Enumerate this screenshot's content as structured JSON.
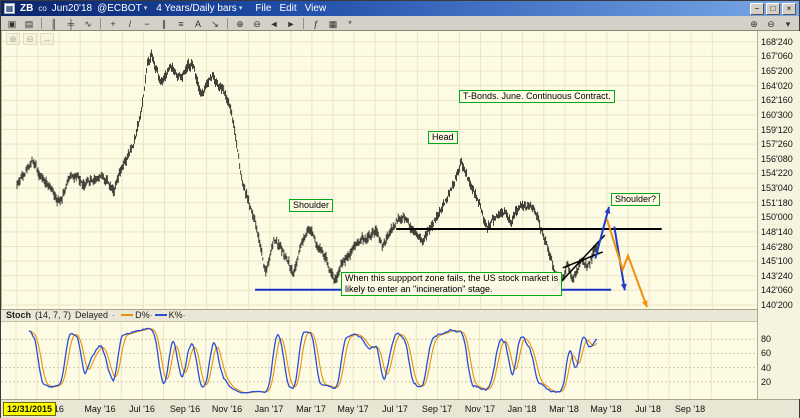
{
  "window": {
    "app_icon_glyph": "▦",
    "symbol": "ZB",
    "symbol_suffix": "co",
    "contract": "Jun20'18",
    "exchange": "@ECBOT",
    "dropdown_glyph": "▾",
    "period": "4 Years/Daily bars",
    "menu_items": [
      "File",
      "Edit",
      "View"
    ],
    "buttons": [
      {
        "name": "minimize-button",
        "glyph": "−"
      },
      {
        "name": "maximize-button",
        "glyph": "□"
      },
      {
        "name": "close-button",
        "glyph": "×"
      }
    ]
  },
  "toolbar": {
    "icons": [
      {
        "name": "open-chart-icon",
        "glyph": "▣"
      },
      {
        "name": "print-icon",
        "glyph": "▤"
      },
      {
        "sep": true
      },
      {
        "name": "bar-chart-icon",
        "glyph": "║"
      },
      {
        "name": "candlestick-icon",
        "glyph": "╪"
      },
      {
        "name": "line-chart-icon",
        "glyph": "∿"
      },
      {
        "sep": true
      },
      {
        "name": "crosshair-icon",
        "glyph": "+"
      },
      {
        "name": "trendline-icon",
        "glyph": "/"
      },
      {
        "name": "horizontal-line-icon",
        "glyph": "−"
      },
      {
        "name": "channel-icon",
        "glyph": "∥"
      },
      {
        "name": "fibonacci-icon",
        "glyph": "≡"
      },
      {
        "name": "text-annotation-icon",
        "glyph": "A"
      },
      {
        "name": "arrow-annotation-icon",
        "glyph": "↘"
      },
      {
        "sep": true
      },
      {
        "name": "zoom-in-icon",
        "glyph": "⊕"
      },
      {
        "name": "zoom-out-icon",
        "glyph": "⊖"
      },
      {
        "name": "scroll-left-icon",
        "glyph": "◄"
      },
      {
        "name": "scroll-right-icon",
        "glyph": "►"
      },
      {
        "sep": true
      },
      {
        "name": "indicator-icon",
        "glyph": "ƒ"
      },
      {
        "name": "grid-toggle-icon",
        "glyph": "▦"
      },
      {
        "name": "settings-icon",
        "glyph": "*"
      }
    ],
    "right_icons": [
      {
        "name": "zoom-range-in-icon",
        "glyph": "⊕"
      },
      {
        "name": "zoom-range-out-icon",
        "glyph": "⊖"
      },
      {
        "name": "panel-dropdown-icon",
        "glyph": "▾"
      }
    ]
  },
  "ghost_tools": [
    {
      "name": "zoom-in-overlay-icon",
      "glyph": "⊕"
    },
    {
      "name": "zoom-out-overlay-icon",
      "glyph": "⊖"
    },
    {
      "name": "pan-overlay-icon",
      "glyph": "↔"
    }
  ],
  "price_axis": {
    "labels": [
      "168'240",
      "167'060",
      "165'200",
      "164'020",
      "162'160",
      "160'300",
      "159'120",
      "157'260",
      "156'080",
      "154'220",
      "153'040",
      "151'180",
      "150'000",
      "148'140",
      "146'280",
      "145'100",
      "143'240",
      "142'060",
      "140'200"
    ],
    "values": [
      168.75,
      167.1875,
      165.625,
      164.0625,
      162.5,
      160.9375,
      159.375,
      157.8125,
      156.25,
      154.6875,
      153.125,
      151.5625,
      150.0,
      148.4375,
      146.875,
      145.3125,
      143.75,
      142.1875,
      140.625
    ]
  },
  "x_axis": {
    "start_date_label": "12/31/2015",
    "ticks": [
      {
        "label": "'16",
        "m": 2
      },
      {
        "label": "May '16",
        "m": 4
      },
      {
        "label": "Jul '16",
        "m": 6
      },
      {
        "label": "Sep '16",
        "m": 8
      },
      {
        "label": "Nov '16",
        "m": 10
      },
      {
        "label": "Jan '17",
        "m": 12
      },
      {
        "label": "Mar '17",
        "m": 14
      },
      {
        "label": "May '17",
        "m": 16
      },
      {
        "label": "Jul '17",
        "m": 18
      },
      {
        "label": "Sep '17",
        "m": 20
      },
      {
        "label": "Nov '17",
        "m": 22
      },
      {
        "label": "Jan '18",
        "m": 24
      },
      {
        "label": "Mar '18",
        "m": 26
      },
      {
        "label": "May '18",
        "m": 28
      },
      {
        "label": "Jul '18",
        "m": 30
      },
      {
        "label": "Sep '18",
        "m": 32
      }
    ]
  },
  "stoch_panel": {
    "name": "Stoch",
    "params": "(14, 7, 7)",
    "status": "Delayed",
    "separator": "·",
    "series": [
      {
        "label": "D%",
        "color": "#e8920a"
      },
      {
        "label": "K%",
        "color": "#2a4fd0"
      }
    ],
    "axis_values": [
      80,
      60,
      40,
      20
    ]
  },
  "colors": {
    "chart_bg": "#fdfbe3",
    "grid": "#e9e5c7",
    "bar": "#141410",
    "support_blue": "#1830c8",
    "neckline_black": "#000000",
    "arrow_blue": "#1e3cc8",
    "arrow_orange": "#f0900c",
    "annotation_green": "#00a81c",
    "stoch_k": "#2a4fd0",
    "stoch_d": "#e8920a",
    "date_highlight": "#ffff00"
  },
  "chart_data": {
    "type": "bar",
    "title": "T-Bonds June continuous contract, daily OHLC bars with stochastic",
    "x_unit": "months_since_2016_01",
    "price_unit": "points (axis shown in 32nds, e.g. 168'240 = 168 24/32)",
    "ylim": [
      140.2,
      169.9
    ],
    "map": {
      "x0_frac": 0.0198,
      "per_month_frac": 0.02787
    },
    "bars_per_month": 21,
    "last_m": 27.6,
    "seed": 42,
    "noise_amp": 0.5,
    "waypoints": [
      [
        0,
        153.5
      ],
      [
        0.7,
        156.2
      ],
      [
        1.2,
        154.2
      ],
      [
        2,
        151.8
      ],
      [
        2.6,
        154.8
      ],
      [
        3.2,
        153.2
      ],
      [
        4,
        154.6
      ],
      [
        4.6,
        153.2
      ],
      [
        5,
        155.0
      ],
      [
        5.5,
        157.5
      ],
      [
        5.9,
        161.5
      ],
      [
        6.2,
        166.5
      ],
      [
        6.4,
        167.6
      ],
      [
        6.8,
        164.6
      ],
      [
        7.3,
        166.2
      ],
      [
        7.8,
        164.6
      ],
      [
        8.3,
        166.4
      ],
      [
        8.8,
        163.2
      ],
      [
        9.3,
        165.2
      ],
      [
        9.8,
        163.4
      ],
      [
        10.2,
        161.2
      ],
      [
        10.4,
        158.0
      ],
      [
        10.7,
        154.0
      ],
      [
        11.1,
        151.0
      ],
      [
        11.5,
        147.5
      ],
      [
        11.8,
        144.2
      ],
      [
        12.2,
        147.6
      ],
      [
        12.6,
        146.4
      ],
      [
        13.1,
        144.0
      ],
      [
        13.5,
        147.2
      ],
      [
        14.0,
        148.4
      ],
      [
        14.5,
        146.2
      ],
      [
        15.1,
        143.4
      ],
      [
        15.5,
        145.2
      ],
      [
        16.0,
        147.2
      ],
      [
        16.5,
        147.8
      ],
      [
        17.0,
        148.4
      ],
      [
        17.4,
        146.8
      ],
      [
        18.0,
        149.6
      ],
      [
        18.4,
        150.2
      ],
      [
        18.8,
        148.6
      ],
      [
        19.3,
        147.8
      ],
      [
        19.8,
        149.4
      ],
      [
        20.3,
        151.6
      ],
      [
        20.7,
        153.6
      ],
      [
        21.1,
        155.8
      ],
      [
        21.5,
        153.4
      ],
      [
        21.9,
        151.6
      ],
      [
        22.3,
        148.8
      ],
      [
        22.7,
        149.8
      ],
      [
        23.1,
        150.8
      ],
      [
        23.5,
        149.6
      ],
      [
        23.8,
        151.4
      ],
      [
        24.2,
        150.4
      ],
      [
        24.5,
        151.3
      ],
      [
        24.8,
        149.6
      ],
      [
        25.2,
        146.4
      ],
      [
        25.5,
        144.4
      ],
      [
        25.8,
        142.9
      ],
      [
        26.1,
        144.6
      ],
      [
        26.4,
        143.4
      ],
      [
        26.8,
        145.2
      ],
      [
        27.1,
        144.3
      ],
      [
        27.4,
        146.2
      ],
      [
        27.6,
        146.9
      ]
    ],
    "stochastic": {
      "period": 14,
      "k_smooth": 7,
      "d_smooth": 7
    },
    "lines": [
      {
        "id": "support-line",
        "m1": 11.3,
        "p1": 142.25,
        "m2": 28.2,
        "p2": 142.25,
        "color": "#1830c8",
        "width": 2
      },
      {
        "id": "neckline",
        "m1": 18.0,
        "p1": 148.75,
        "m2": 30.6,
        "p2": 148.75,
        "color": "#000000",
        "width": 2
      },
      {
        "id": "wedge-upper-line",
        "m1": 25.4,
        "p1": 142.1,
        "m2": 27.9,
        "p2": 148.1,
        "color": "#000000",
        "width": 1.5
      },
      {
        "id": "wedge-lower-line",
        "m1": 25.9,
        "p1": 144.6,
        "m2": 27.8,
        "p2": 146.3,
        "color": "#000000",
        "width": 1.5
      }
    ],
    "arrows": [
      {
        "id": "projection-up-blue-arrow",
        "color": "#1e3cc8",
        "points": [
          [
            27.45,
            145.6
          ],
          [
            28.1,
            151.1
          ]
        ]
      },
      {
        "id": "projection-down-blue-arrow",
        "color": "#1e3cc8",
        "points": [
          [
            28.35,
            149.0
          ],
          [
            28.85,
            142.2
          ]
        ]
      },
      {
        "id": "projection-down-orange-arrow",
        "color": "#f0900c",
        "points": [
          [
            28.0,
            149.8
          ],
          [
            28.75,
            144.4
          ],
          [
            29.0,
            145.9
          ],
          [
            29.9,
            140.4
          ]
        ]
      }
    ],
    "annotations": [
      {
        "id": "contract-note",
        "text": "T-Bonds. June. Continuous Contract.",
        "m": 21.0,
        "price": 163.6
      },
      {
        "id": "head-label",
        "text": "Head",
        "m": 19.5,
        "price": 159.2
      },
      {
        "id": "left-shoulder-label",
        "text": "Shoulder",
        "m": 12.9,
        "price": 151.9
      },
      {
        "id": "right-shoulder-label",
        "text": "Shoulder?",
        "m": 28.2,
        "price": 152.6
      },
      {
        "id": "support-note",
        "lines": [
          "When this suppport zone fails, the US stock market is",
          "likely to enter an \"incineration\" stage."
        ],
        "m": 15.4,
        "price": 144.1
      }
    ]
  }
}
